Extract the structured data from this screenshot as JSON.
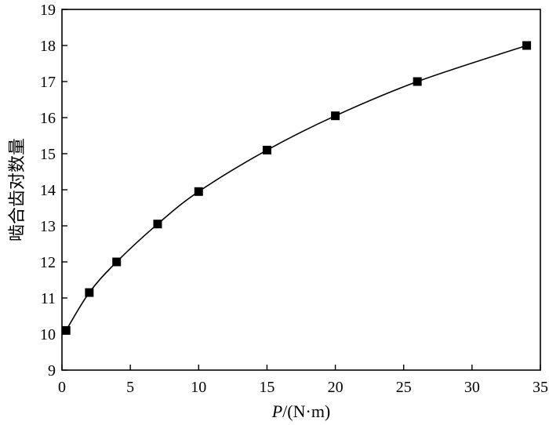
{
  "chart_data": {
    "type": "line",
    "title": "",
    "xlabel": "P/(N·m)",
    "xlabel_var": "P",
    "xlabel_unit": "/(N·m)",
    "ylabel": "啮合齿对数量",
    "xlim": [
      0,
      35
    ],
    "ylim": [
      9,
      19
    ],
    "x_ticks": [
      0,
      5,
      10,
      15,
      20,
      25,
      30,
      35
    ],
    "y_ticks": [
      9,
      10,
      11,
      12,
      13,
      14,
      15,
      16,
      17,
      18,
      19
    ],
    "grid": false,
    "legend": "none",
    "series": [
      {
        "x": [
          0.3,
          2,
          4,
          7,
          10,
          15,
          20,
          26,
          34
        ],
        "y": [
          10.1,
          11.15,
          12.0,
          13.05,
          13.95,
          15.1,
          16.05,
          17.0,
          18.0
        ],
        "marker": "square",
        "color": "#000000"
      }
    ]
  }
}
